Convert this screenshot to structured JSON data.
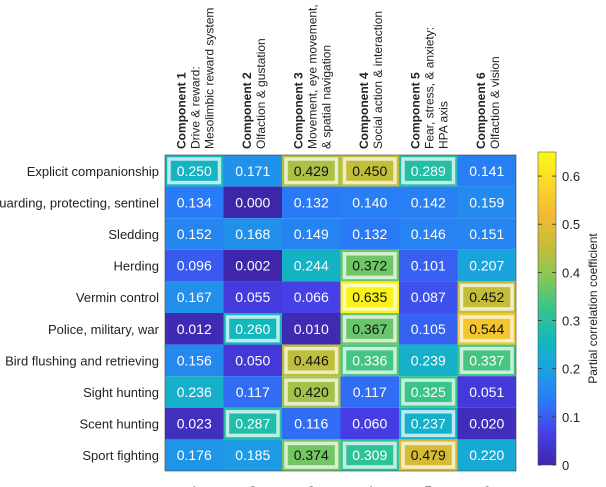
{
  "chart_data": {
    "type": "heatmap",
    "title": "",
    "rows": [
      "Explicit companionship",
      "Guarding, protecting, sentinel",
      "Sledding",
      "Herding",
      "Vermin control",
      "Police, military, war",
      "Bird flushing and retrieving",
      "Sight hunting",
      "Scent hunting",
      "Sport fighting"
    ],
    "columns": [
      "1",
      "2",
      "3",
      "4",
      "5",
      "6"
    ],
    "column_headers": [
      {
        "title": "Component 1",
        "lines": [
          "Drive & reward:",
          "Mesolimbic reward system"
        ]
      },
      {
        "title": "Component 2",
        "lines": [
          "Olfaction & gustation"
        ]
      },
      {
        "title": "Component 3",
        "lines": [
          "Movement, eye movement,",
          "& spatial navigation"
        ]
      },
      {
        "title": "Component 4",
        "lines": [
          "Social action & interaction"
        ]
      },
      {
        "title": "Component 5",
        "lines": [
          "Fear, stress, & anxiety:",
          "HPA axis"
        ]
      },
      {
        "title": "Component 6",
        "lines": [
          "Olfaction & vision"
        ]
      }
    ],
    "values": [
      [
        "0.250",
        "0.171",
        "0.429",
        "0.450",
        "0.289",
        "0.141"
      ],
      [
        "0.134",
        "0.000",
        "0.132",
        "0.140",
        "0.142",
        "0.159"
      ],
      [
        "0.152",
        "0.168",
        "0.149",
        "0.132",
        "0.146",
        "0.151"
      ],
      [
        "0.096",
        "0.002",
        "0.244",
        "0.372",
        "0.101",
        "0.207"
      ],
      [
        "0.167",
        "0.055",
        "0.066",
        "0.635",
        "0.087",
        "0.452"
      ],
      [
        "0.012",
        "0.260",
        "0.010",
        "0.367",
        "0.105",
        "0.544"
      ],
      [
        "0.156",
        "0.050",
        "0.446",
        "0.336",
        "0.239",
        "0.337"
      ],
      [
        "0.236",
        "0.117",
        "0.420",
        "0.117",
        "0.325",
        "0.051"
      ],
      [
        "0.023",
        "0.287",
        "0.116",
        "0.060",
        "0.237",
        "0.020"
      ],
      [
        "0.176",
        "0.185",
        "0.374",
        "0.309",
        "0.479",
        "0.220"
      ]
    ],
    "highlighted": [
      [
        0,
        0
      ],
      [
        0,
        2
      ],
      [
        0,
        3
      ],
      [
        0,
        4
      ],
      [
        3,
        3
      ],
      [
        4,
        3
      ],
      [
        4,
        5
      ],
      [
        5,
        1
      ],
      [
        5,
        3
      ],
      [
        5,
        5
      ],
      [
        6,
        2
      ],
      [
        6,
        3
      ],
      [
        6,
        5
      ],
      [
        7,
        2
      ],
      [
        7,
        4
      ],
      [
        8,
        1
      ],
      [
        8,
        4
      ],
      [
        9,
        2
      ],
      [
        9,
        3
      ],
      [
        9,
        4
      ]
    ],
    "colorbar": {
      "label": "Partial correlation coefficient",
      "range": [
        0,
        0.65
      ],
      "ticks": [
        "0",
        "0.1",
        "0.2",
        "0.3",
        "0.4",
        "0.5",
        "0.6"
      ],
      "colormap": "parula"
    }
  }
}
